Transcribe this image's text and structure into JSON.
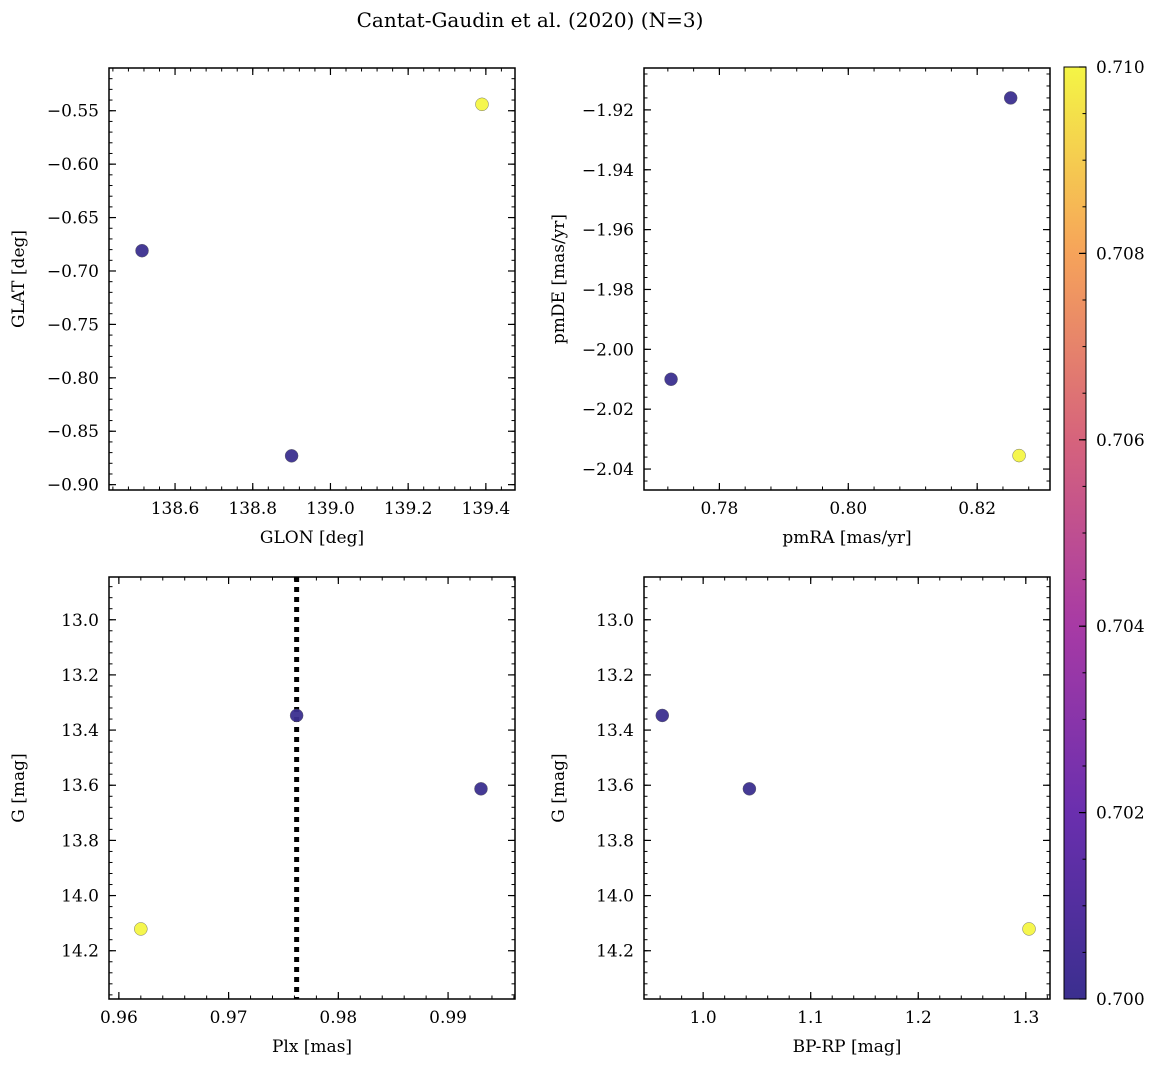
{
  "figure_title": "Cantat-Gaudin et al. (2020) (N=3)",
  "colorbar": {
    "min": 0.7,
    "max": 0.71,
    "ticks": [
      "0.700",
      "0.702",
      "0.704",
      "0.706",
      "0.708",
      "0.710"
    ]
  },
  "chart_data": [
    {
      "type": "scatter",
      "xlabel": "GLON [deg]",
      "ylabel": "GLAT [deg]",
      "xlim": [
        138.43,
        139.475
      ],
      "ylim": [
        -0.905,
        -0.51
      ],
      "y_inverted": false,
      "xticks": [
        "138.6",
        "138.8",
        "139.0",
        "139.2",
        "139.4"
      ],
      "yticks": [
        "-0.55",
        "-0.60",
        "-0.65",
        "-0.70",
        "-0.75",
        "-0.80",
        "-0.85",
        "-0.90"
      ],
      "points": [
        {
          "x": 138.515,
          "y": -0.681,
          "c": 0.7
        },
        {
          "x": 138.9,
          "y": -0.873,
          "c": 0.7
        },
        {
          "x": 139.39,
          "y": -0.544,
          "c": 0.71
        }
      ]
    },
    {
      "type": "scatter",
      "xlabel": "pmRA [mas/yr]",
      "ylabel": "pmDE [mas/yr]",
      "xlim": [
        0.7683,
        0.8313
      ],
      "ylim": [
        -2.047,
        -1.906
      ],
      "y_inverted": false,
      "xticks": [
        "0.78",
        "0.80",
        "0.82"
      ],
      "yticks": [
        "-1.92",
        "-1.94",
        "-1.96",
        "-1.98",
        "-2.00",
        "-2.02",
        "-2.04"
      ],
      "points": [
        {
          "x": 0.7725,
          "y": -2.01,
          "c": 0.7
        },
        {
          "x": 0.8252,
          "y": -1.916,
          "c": 0.7
        },
        {
          "x": 0.8265,
          "y": -2.0355,
          "c": 0.71
        }
      ]
    },
    {
      "type": "scatter",
      "xlabel": "Plx [mas]",
      "ylabel": "G [mag]",
      "xlim": [
        0.9591,
        0.9961
      ],
      "ylim": [
        12.845,
        14.375
      ],
      "y_inverted": true,
      "xticks": [
        "0.96",
        "0.97",
        "0.98",
        "0.99"
      ],
      "yticks": [
        "13.0",
        "13.2",
        "13.4",
        "13.6",
        "13.8",
        "14.0",
        "14.2"
      ],
      "vline": 0.9762,
      "points": [
        {
          "x": 0.962,
          "y": 14.121,
          "c": 0.71
        },
        {
          "x": 0.9762,
          "y": 13.347,
          "c": 0.7
        },
        {
          "x": 0.993,
          "y": 13.613,
          "c": 0.7
        }
      ]
    },
    {
      "type": "scatter",
      "xlabel": "BP-RP [mag]",
      "ylabel": "G [mag]",
      "xlim": [
        0.945,
        1.3225
      ],
      "ylim": [
        12.845,
        14.375
      ],
      "y_inverted": true,
      "xticks": [
        "1.0",
        "1.1",
        "1.2",
        "1.3"
      ],
      "yticks": [
        "13.0",
        "13.2",
        "13.4",
        "13.6",
        "13.8",
        "14.0",
        "14.2"
      ],
      "points": [
        {
          "x": 0.962,
          "y": 13.347,
          "c": 0.7
        },
        {
          "x": 1.043,
          "y": 13.613,
          "c": 0.7
        },
        {
          "x": 1.303,
          "y": 14.121,
          "c": 0.71
        }
      ]
    }
  ]
}
